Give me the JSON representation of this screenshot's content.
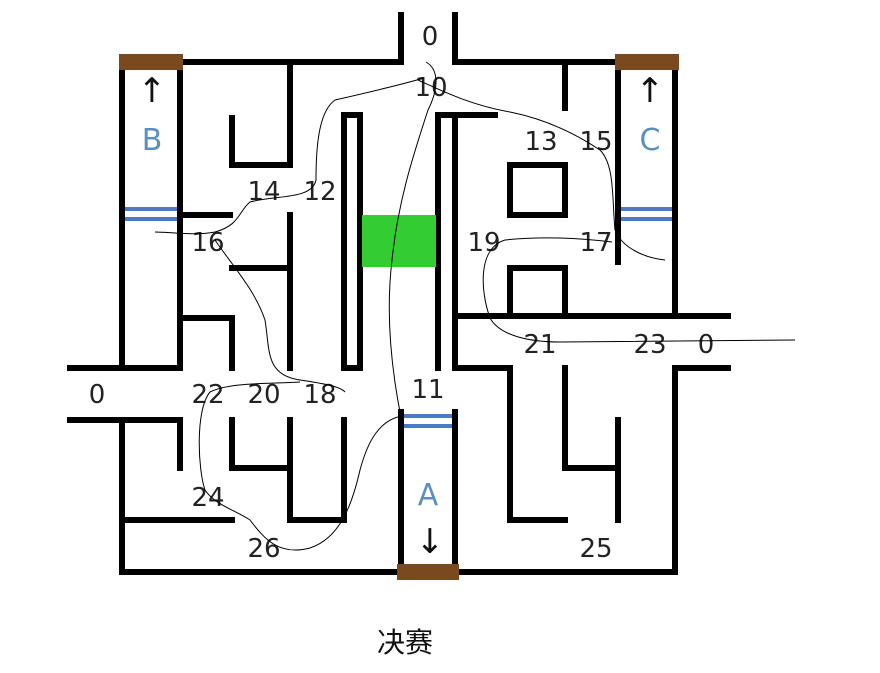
{
  "colors": {
    "wall": "#000000",
    "door": "#7a4a1e",
    "gate_stripe": "#4a7bc4",
    "gate_letter": "#5b8fbf",
    "zone": "#33cc33"
  },
  "gates": [
    {
      "id": "gate-b",
      "letter": "B",
      "arrow": "↑"
    },
    {
      "id": "gate-c",
      "letter": "C",
      "arrow": "↑"
    },
    {
      "id": "gate-a",
      "letter": "A",
      "arrow": "↓"
    }
  ],
  "numbers": [
    {
      "id": "n-top",
      "text": "0"
    },
    {
      "id": "n-10",
      "text": "10"
    },
    {
      "id": "n-13",
      "text": "13"
    },
    {
      "id": "n-15",
      "text": "15"
    },
    {
      "id": "n-14",
      "text": "14"
    },
    {
      "id": "n-12",
      "text": "12"
    },
    {
      "id": "n-16",
      "text": "16"
    },
    {
      "id": "n-19",
      "text": "19"
    },
    {
      "id": "n-17",
      "text": "17"
    },
    {
      "id": "n-21",
      "text": "21"
    },
    {
      "id": "n-23",
      "text": "23"
    },
    {
      "id": "n-right",
      "text": "0"
    },
    {
      "id": "n-left",
      "text": "0"
    },
    {
      "id": "n-22",
      "text": "22"
    },
    {
      "id": "n-20",
      "text": "20"
    },
    {
      "id": "n-18",
      "text": "18"
    },
    {
      "id": "n-11",
      "text": "11"
    },
    {
      "id": "n-24",
      "text": "24"
    },
    {
      "id": "n-26",
      "text": "26"
    },
    {
      "id": "n-25",
      "text": "25"
    }
  ],
  "caption": "决赛"
}
